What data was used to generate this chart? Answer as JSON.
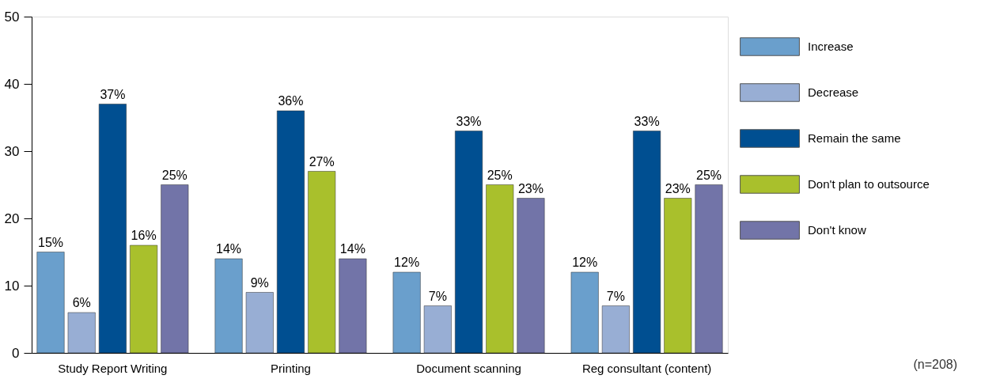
{
  "chart_data": {
    "type": "bar",
    "categories": [
      "Study Report Writing",
      "Printing",
      "Document scanning",
      "Reg consultant (content)"
    ],
    "series": [
      {
        "name": "Increase",
        "color": "#6a9fcc",
        "values": [
          15,
          14,
          12,
          12
        ],
        "value_labels": [
          "15%",
          "14%",
          "12%",
          "12%"
        ]
      },
      {
        "name": "Decrease",
        "color": "#98aed4",
        "values": [
          6,
          9,
          7,
          7
        ],
        "value_labels": [
          "6%",
          "9%",
          "7%",
          "7%"
        ]
      },
      {
        "name": "Remain the same",
        "color": "#004f91",
        "values": [
          37,
          36,
          33,
          33
        ],
        "value_labels": [
          "37%",
          "36%",
          "33%",
          "33%"
        ]
      },
      {
        "name": "Don't plan to outsource",
        "color": "#a9c02c",
        "values": [
          16,
          27,
          25,
          23
        ],
        "value_labels": [
          "16%",
          "27%",
          "25%",
          "23%"
        ]
      },
      {
        "name": "Don't know",
        "color": "#7274a8",
        "values": [
          25,
          14,
          23,
          25
        ],
        "value_labels": [
          "25%",
          "14%",
          "23%",
          "25%"
        ]
      }
    ],
    "ylim": [
      0,
      50
    ],
    "yticks": [
      0,
      10,
      20,
      30,
      40,
      50
    ],
    "grid": false,
    "legend": "right",
    "annotations": [
      "(n=208)"
    ]
  }
}
